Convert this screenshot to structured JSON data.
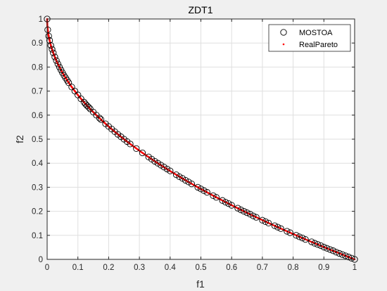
{
  "figure": {
    "background": "#f0f0f0"
  },
  "chart_data": {
    "type": "scatter",
    "title": "ZDT1",
    "xlabel": "f1",
    "ylabel": "f2",
    "xlim": [
      0,
      1
    ],
    "ylim": [
      0,
      1
    ],
    "xticks": [
      "0",
      "0.1",
      "0.2",
      "0.3",
      "0.4",
      "0.5",
      "0.6",
      "0.7",
      "0.8",
      "0.9",
      "1"
    ],
    "yticks": [
      "0",
      "0.1",
      "0.2",
      "0.3",
      "0.4",
      "0.5",
      "0.6",
      "0.7",
      "0.8",
      "0.9",
      "1"
    ],
    "grid": true,
    "legend_position": "top-right",
    "series": [
      {
        "name": "MOSTOA",
        "marker": "open-circle",
        "color": "#000000",
        "x": [
          0.0,
          0.002,
          0.005,
          0.008,
          0.012,
          0.016,
          0.02,
          0.025,
          0.03,
          0.035,
          0.04,
          0.045,
          0.05,
          0.055,
          0.06,
          0.065,
          0.07,
          0.08,
          0.09,
          0.1,
          0.11,
          0.12,
          0.125,
          0.13,
          0.135,
          0.14,
          0.15,
          0.16,
          0.17,
          0.175,
          0.19,
          0.2,
          0.21,
          0.22,
          0.23,
          0.24,
          0.25,
          0.26,
          0.27,
          0.29,
          0.31,
          0.33,
          0.34,
          0.35,
          0.36,
          0.37,
          0.38,
          0.39,
          0.4,
          0.42,
          0.43,
          0.44,
          0.45,
          0.46,
          0.47,
          0.49,
          0.5,
          0.51,
          0.52,
          0.54,
          0.55,
          0.57,
          0.58,
          0.59,
          0.6,
          0.62,
          0.63,
          0.64,
          0.65,
          0.66,
          0.67,
          0.68,
          0.7,
          0.71,
          0.72,
          0.74,
          0.75,
          0.76,
          0.78,
          0.79,
          0.81,
          0.82,
          0.83,
          0.84,
          0.86,
          0.87,
          0.88,
          0.89,
          0.9,
          0.91,
          0.92,
          0.93,
          0.94,
          0.95,
          0.96,
          0.97,
          0.98,
          0.99,
          1.0
        ],
        "y": [
          1.0,
          0.955,
          0.929,
          0.911,
          0.89,
          0.874,
          0.859,
          0.842,
          0.827,
          0.813,
          0.8,
          0.788,
          0.776,
          0.765,
          0.755,
          0.745,
          0.735,
          0.717,
          0.7,
          0.684,
          0.668,
          0.654,
          0.646,
          0.639,
          0.633,
          0.626,
          0.613,
          0.6,
          0.588,
          0.582,
          0.564,
          0.553,
          0.542,
          0.531,
          0.52,
          0.51,
          0.5,
          0.49,
          0.48,
          0.461,
          0.443,
          0.426,
          0.417,
          0.408,
          0.4,
          0.392,
          0.384,
          0.376,
          0.368,
          0.352,
          0.344,
          0.337,
          0.329,
          0.322,
          0.314,
          0.3,
          0.293,
          0.286,
          0.279,
          0.265,
          0.258,
          0.245,
          0.238,
          0.232,
          0.225,
          0.213,
          0.206,
          0.2,
          0.194,
          0.188,
          0.181,
          0.175,
          0.163,
          0.157,
          0.151,
          0.14,
          0.134,
          0.128,
          0.117,
          0.111,
          0.1,
          0.094,
          0.089,
          0.083,
          0.073,
          0.067,
          0.062,
          0.057,
          0.051,
          0.046,
          0.041,
          0.036,
          0.03,
          0.025,
          0.02,
          0.015,
          0.01,
          0.005,
          0.0
        ]
      },
      {
        "name": "RealPareto",
        "marker": "dot",
        "color": "#ff0000",
        "x_range": [
          0,
          1
        ],
        "curve": "f2 = 1 - sqrt(f1)"
      }
    ]
  }
}
